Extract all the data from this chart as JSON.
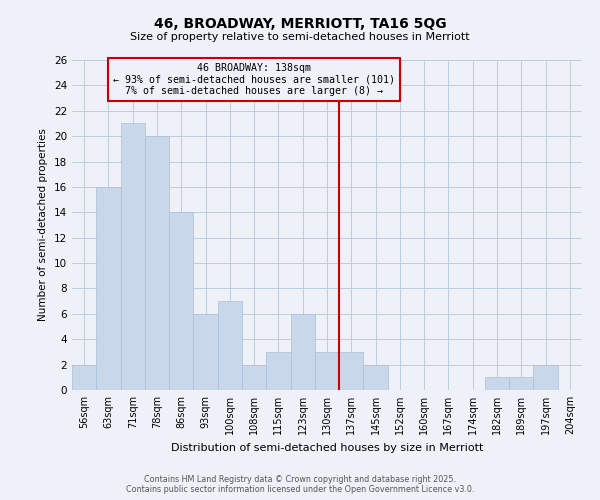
{
  "title": "46, BROADWAY, MERRIOTT, TA16 5QG",
  "subtitle": "Size of property relative to semi-detached houses in Merriott",
  "xlabel": "Distribution of semi-detached houses by size in Merriott",
  "ylabel": "Number of semi-detached properties",
  "categories": [
    "56sqm",
    "63sqm",
    "71sqm",
    "78sqm",
    "86sqm",
    "93sqm",
    "100sqm",
    "108sqm",
    "115sqm",
    "123sqm",
    "130sqm",
    "137sqm",
    "145sqm",
    "152sqm",
    "160sqm",
    "167sqm",
    "174sqm",
    "182sqm",
    "189sqm",
    "197sqm",
    "204sqm"
  ],
  "values": [
    2,
    16,
    21,
    20,
    14,
    6,
    7,
    2,
    3,
    6,
    3,
    3,
    2,
    0,
    0,
    0,
    0,
    1,
    1,
    2,
    0
  ],
  "bar_color": "#c8d8ea",
  "bar_edge_color": "#a8c0d8",
  "vline_color": "#cc0000",
  "annotation_title": "46 BROADWAY: 138sqm",
  "annotation_line1": "← 93% of semi-detached houses are smaller (101)",
  "annotation_line2": "7% of semi-detached houses are larger (8) →",
  "annotation_box_color": "#cc0000",
  "ylim": [
    0,
    26
  ],
  "yticks": [
    0,
    2,
    4,
    6,
    8,
    10,
    12,
    14,
    16,
    18,
    20,
    22,
    24,
    26
  ],
  "grid_color": "#c0ccd8",
  "background_color": "#eef2f8",
  "footer_line1": "Contains HM Land Registry data © Crown copyright and database right 2025.",
  "footer_line2": "Contains public sector information licensed under the Open Government Licence v3.0."
}
